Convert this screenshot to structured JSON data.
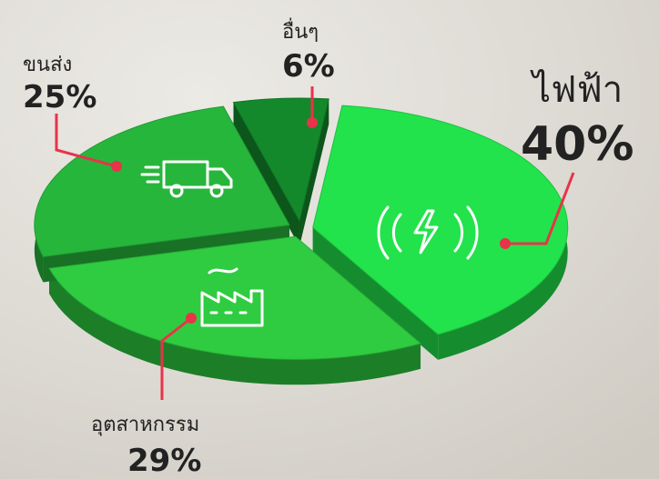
{
  "chart_data": {
    "type": "pie",
    "categories": [
      "อื่นๆ",
      "ไฟฟ้า",
      "อุตสาหกรรม",
      "ขนส่ง"
    ],
    "values": [
      6,
      40,
      29,
      25
    ],
    "value_labels": [
      "6%",
      "40%",
      "29%",
      "25%"
    ],
    "colors": [
      "#13892b",
      "#22e34b",
      "#2fcc41",
      "#27b63c"
    ]
  }
}
